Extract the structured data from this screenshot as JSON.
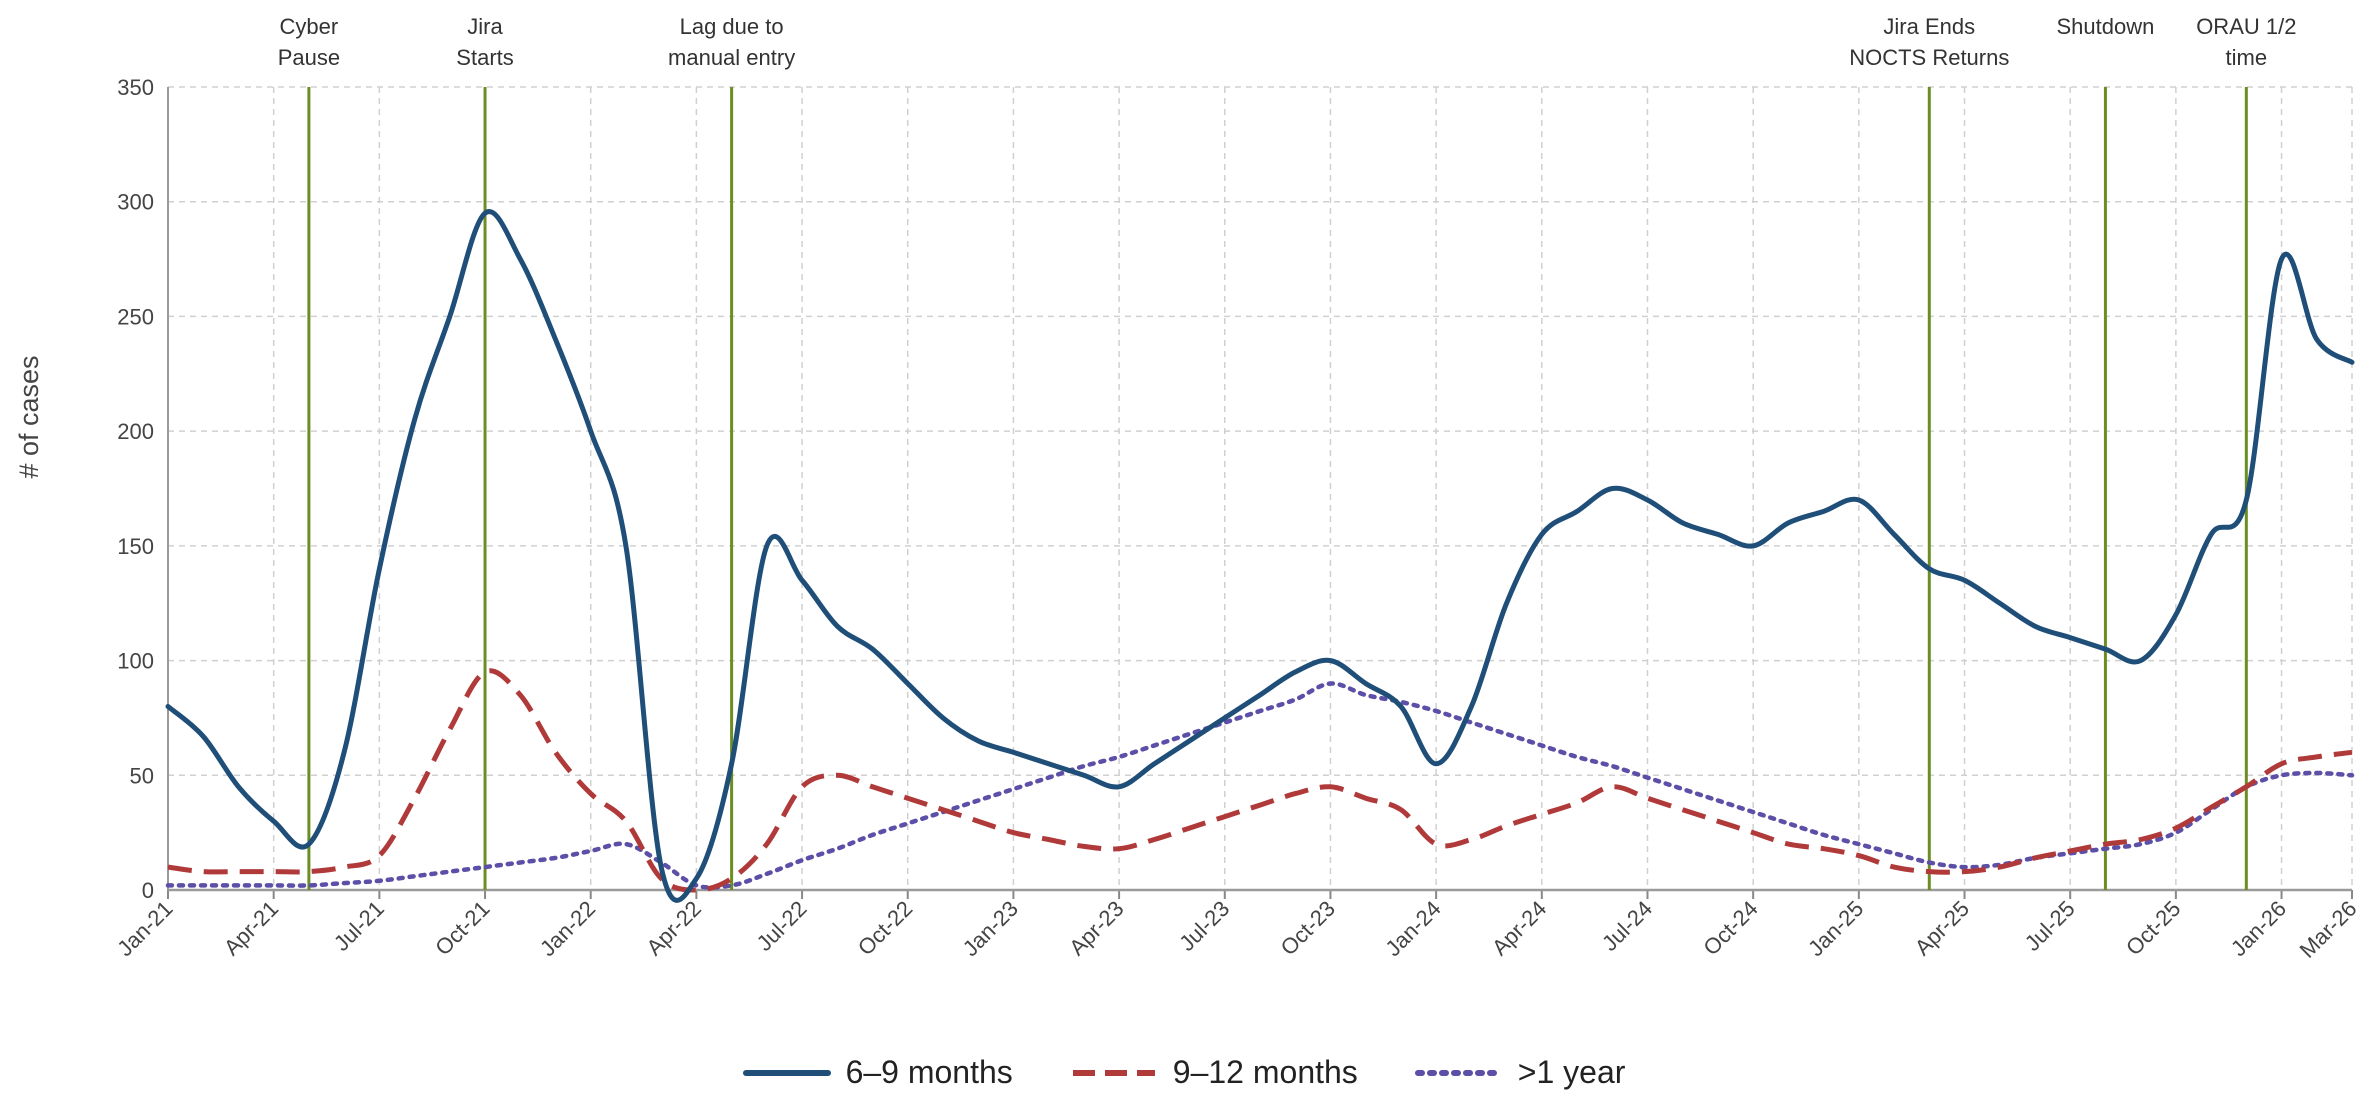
{
  "chart_data": {
    "type": "line",
    "ylabel": "# of cases",
    "ylim": [
      0,
      350
    ],
    "yticks": [
      "0",
      "50",
      "100",
      "150",
      "200",
      "250",
      "300",
      "350"
    ],
    "x_ticks": [
      "Jan-21",
      "Apr-21",
      "Jul-21",
      "Oct-21",
      "Jan-22",
      "Apr-22",
      "Jul-22",
      "Oct-22",
      "Jan-23",
      "Apr-23",
      "Jul-23",
      "Oct-23",
      "Jan-24",
      "Apr-24",
      "Jul-24",
      "Oct-24",
      "Jan-25",
      "Apr-25",
      "Jul-25",
      "Oct-25",
      "Jan-26",
      "Mar-26"
    ],
    "grid": true,
    "legend_position": "bottom",
    "colors": {
      "s1": "#1f4e79",
      "s2": "#b03a3a",
      "s3": "#5b4fa8",
      "event": "#6b8e23"
    },
    "events": [
      {
        "x": 4,
        "label": [
          "Cyber",
          "Pause"
        ]
      },
      {
        "x": 9,
        "label": [
          "Jira",
          "Starts"
        ]
      },
      {
        "x": 16,
        "label": [
          "Lag due to",
          "manual entry"
        ]
      },
      {
        "x": 50,
        "label": [
          "Jira Ends",
          "NOCTS Returns"
        ]
      },
      {
        "x": 55,
        "label": [
          "Shutdown"
        ]
      },
      {
        "x": 59,
        "label": [
          "ORAU 1/2",
          "time"
        ]
      }
    ],
    "series": [
      {
        "name": "6–9 months",
        "points": [
          [
            0,
            80
          ],
          [
            1,
            67
          ],
          [
            2,
            45
          ],
          [
            3,
            30
          ],
          [
            4,
            20
          ],
          [
            5,
            60
          ],
          [
            6,
            140
          ],
          [
            7,
            205
          ],
          [
            8,
            250
          ],
          [
            9,
            295
          ],
          [
            10,
            275
          ],
          [
            11,
            240
          ],
          [
            12,
            200
          ],
          [
            13,
            150
          ],
          [
            14,
            10
          ],
          [
            15,
            5
          ],
          [
            16,
            55
          ],
          [
            17,
            150
          ],
          [
            18,
            135
          ],
          [
            19,
            115
          ],
          [
            20,
            105
          ],
          [
            21,
            90
          ],
          [
            22,
            75
          ],
          [
            23,
            65
          ],
          [
            24,
            60
          ],
          [
            25,
            55
          ],
          [
            26,
            50
          ],
          [
            27,
            45
          ],
          [
            28,
            55
          ],
          [
            29,
            65
          ],
          [
            30,
            75
          ],
          [
            31,
            85
          ],
          [
            32,
            95
          ],
          [
            33,
            100
          ],
          [
            34,
            90
          ],
          [
            35,
            80
          ],
          [
            36,
            55
          ],
          [
            37,
            80
          ],
          [
            38,
            125
          ],
          [
            39,
            155
          ],
          [
            40,
            165
          ],
          [
            41,
            175
          ],
          [
            42,
            170
          ],
          [
            43,
            160
          ],
          [
            44,
            155
          ],
          [
            45,
            150
          ],
          [
            46,
            160
          ],
          [
            47,
            165
          ],
          [
            48,
            170
          ],
          [
            49,
            155
          ],
          [
            50,
            140
          ],
          [
            51,
            135
          ],
          [
            52,
            125
          ],
          [
            53,
            115
          ],
          [
            54,
            110
          ],
          [
            55,
            105
          ],
          [
            56,
            100
          ],
          [
            57,
            120
          ],
          [
            58,
            155
          ],
          [
            59,
            170
          ],
          [
            60,
            275
          ],
          [
            61,
            240
          ],
          [
            62,
            230
          ]
        ]
      },
      {
        "name": "9–12 months",
        "points": [
          [
            0,
            10
          ],
          [
            1,
            8
          ],
          [
            2,
            8
          ],
          [
            3,
            8
          ],
          [
            4,
            8
          ],
          [
            5,
            10
          ],
          [
            6,
            15
          ],
          [
            7,
            40
          ],
          [
            8,
            70
          ],
          [
            9,
            95
          ],
          [
            10,
            85
          ],
          [
            11,
            60
          ],
          [
            12,
            42
          ],
          [
            13,
            30
          ],
          [
            14,
            5
          ],
          [
            15,
            0
          ],
          [
            16,
            5
          ],
          [
            17,
            20
          ],
          [
            18,
            45
          ],
          [
            19,
            50
          ],
          [
            20,
            45
          ],
          [
            21,
            40
          ],
          [
            22,
            35
          ],
          [
            23,
            30
          ],
          [
            24,
            25
          ],
          [
            25,
            22
          ],
          [
            26,
            19
          ],
          [
            27,
            18
          ],
          [
            28,
            22
          ],
          [
            29,
            27
          ],
          [
            30,
            32
          ],
          [
            31,
            37
          ],
          [
            32,
            42
          ],
          [
            33,
            45
          ],
          [
            34,
            40
          ],
          [
            35,
            35
          ],
          [
            36,
            20
          ],
          [
            37,
            22
          ],
          [
            38,
            28
          ],
          [
            39,
            33
          ],
          [
            40,
            38
          ],
          [
            41,
            45
          ],
          [
            42,
            40
          ],
          [
            43,
            35
          ],
          [
            44,
            30
          ],
          [
            45,
            25
          ],
          [
            46,
            20
          ],
          [
            47,
            18
          ],
          [
            48,
            15
          ],
          [
            49,
            10
          ],
          [
            50,
            8
          ],
          [
            51,
            8
          ],
          [
            52,
            10
          ],
          [
            53,
            14
          ],
          [
            54,
            17
          ],
          [
            55,
            20
          ],
          [
            56,
            22
          ],
          [
            57,
            27
          ],
          [
            58,
            36
          ],
          [
            59,
            45
          ],
          [
            60,
            55
          ],
          [
            61,
            58
          ],
          [
            62,
            60
          ]
        ]
      },
      {
        "name": ">1 year",
        "points": [
          [
            0,
            2
          ],
          [
            1,
            2
          ],
          [
            2,
            2
          ],
          [
            3,
            2
          ],
          [
            4,
            2
          ],
          [
            5,
            3
          ],
          [
            6,
            4
          ],
          [
            7,
            6
          ],
          [
            8,
            8
          ],
          [
            9,
            10
          ],
          [
            10,
            12
          ],
          [
            11,
            14
          ],
          [
            12,
            17
          ],
          [
            13,
            20
          ],
          [
            14,
            12
          ],
          [
            15,
            2
          ],
          [
            16,
            2
          ],
          [
            17,
            7
          ],
          [
            18,
            13
          ],
          [
            19,
            18
          ],
          [
            20,
            24
          ],
          [
            21,
            29
          ],
          [
            22,
            34
          ],
          [
            23,
            39
          ],
          [
            24,
            44
          ],
          [
            25,
            49
          ],
          [
            26,
            54
          ],
          [
            27,
            58
          ],
          [
            28,
            63
          ],
          [
            29,
            68
          ],
          [
            30,
            73
          ],
          [
            31,
            78
          ],
          [
            32,
            83
          ],
          [
            33,
            90
          ],
          [
            34,
            85
          ],
          [
            35,
            82
          ],
          [
            36,
            78
          ],
          [
            37,
            73
          ],
          [
            38,
            68
          ],
          [
            39,
            63
          ],
          [
            40,
            58
          ],
          [
            41,
            54
          ],
          [
            42,
            49
          ],
          [
            43,
            44
          ],
          [
            44,
            39
          ],
          [
            45,
            34
          ],
          [
            46,
            29
          ],
          [
            47,
            24
          ],
          [
            48,
            20
          ],
          [
            49,
            16
          ],
          [
            50,
            12
          ],
          [
            51,
            10
          ],
          [
            52,
            11
          ],
          [
            53,
            14
          ],
          [
            54,
            16
          ],
          [
            55,
            18
          ],
          [
            56,
            20
          ],
          [
            57,
            25
          ],
          [
            58,
            35
          ],
          [
            59,
            45
          ],
          [
            60,
            50
          ],
          [
            61,
            51
          ],
          [
            62,
            50
          ]
        ]
      }
    ]
  }
}
